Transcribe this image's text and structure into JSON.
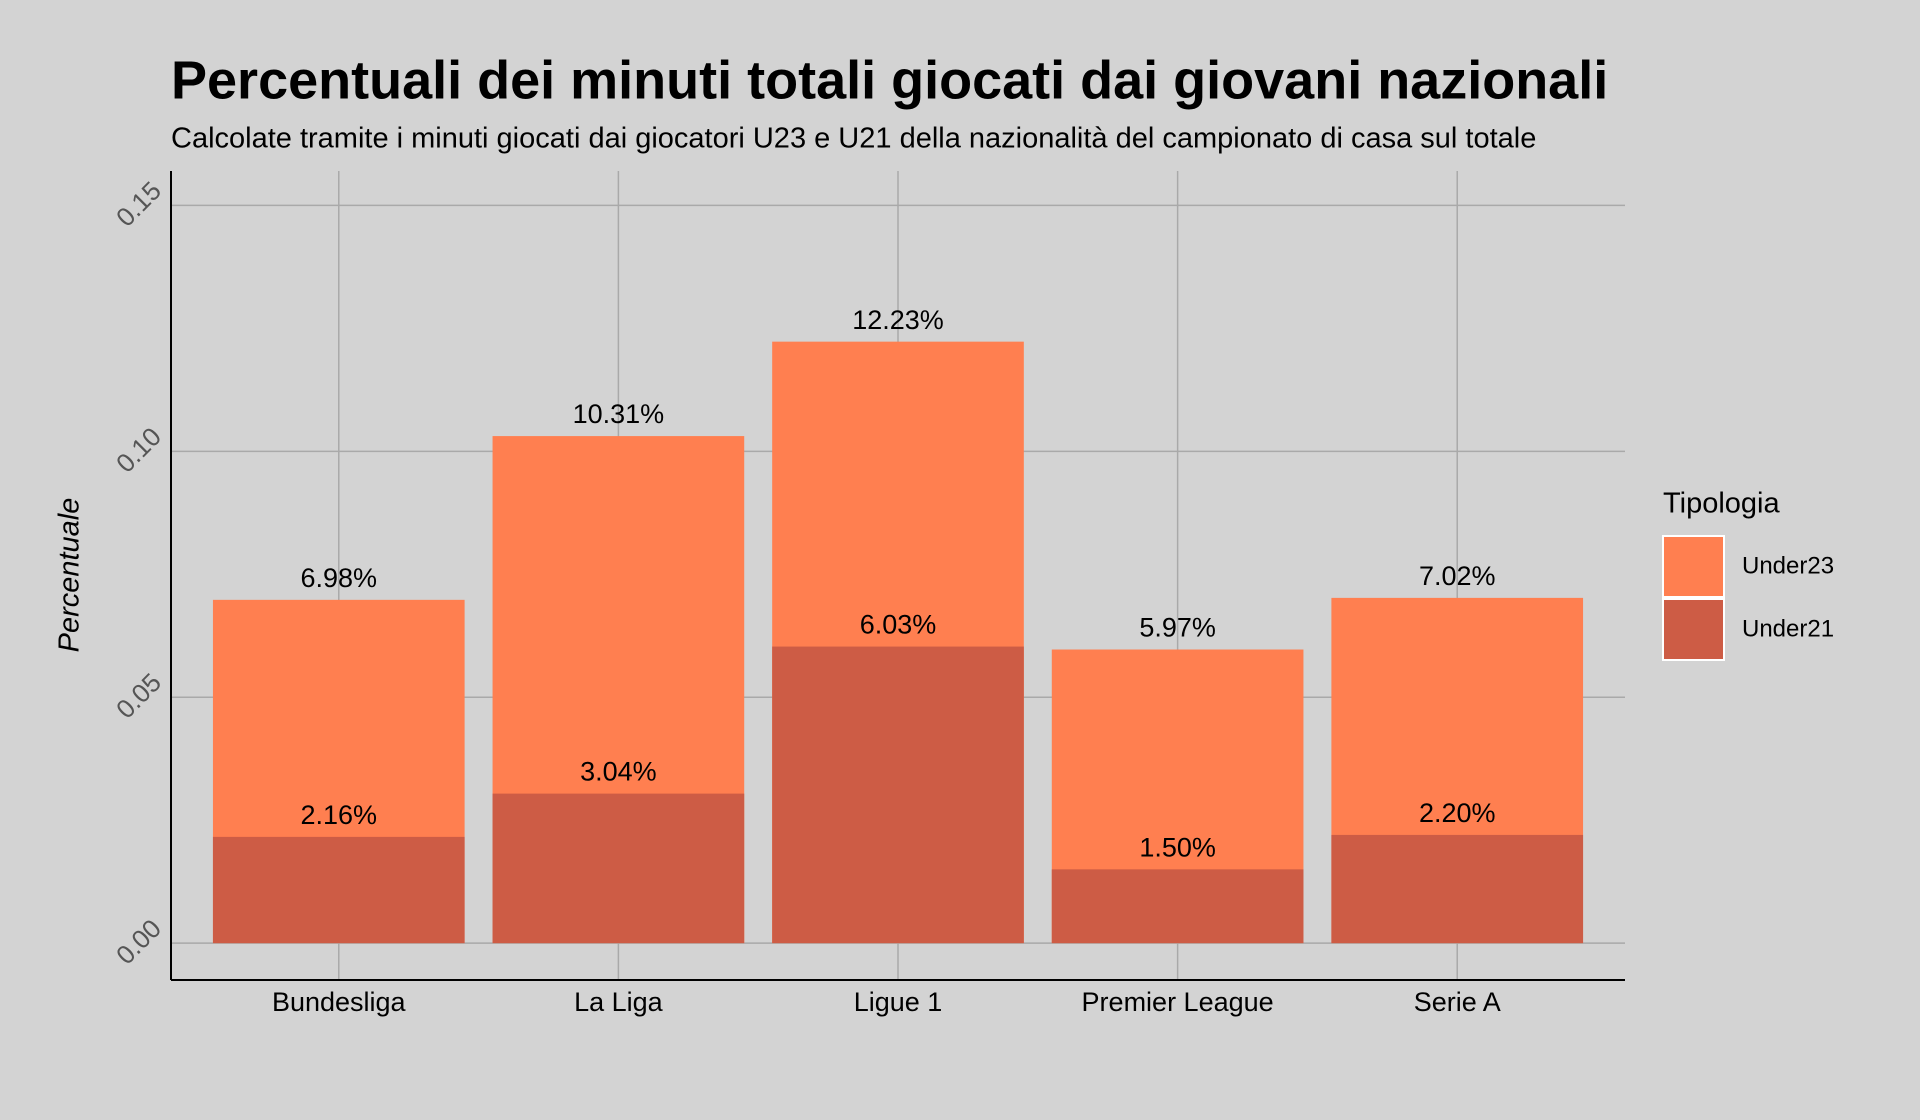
{
  "chart_data": {
    "type": "bar",
    "bar_mode": "overlay",
    "title": "Percentuali dei minuti totali giocati dai giovani nazionali",
    "subtitle": "Calcolate tramite i minuti giocati dai giocatori U23 e U21 della nazionalità del campionato di casa sul totale",
    "y_label": "Percentuale",
    "legend_title": "Tipologia",
    "legend_position": "right",
    "grid": true,
    "categories": [
      "Bundesliga",
      "La Liga",
      "Ligue 1",
      "Premier League",
      "Serie A"
    ],
    "series": [
      {
        "name": "Under23",
        "color": "#ff7f50",
        "values": [
          0.0698,
          0.1031,
          0.1223,
          0.0597,
          0.0702
        ],
        "value_labels": [
          "6.98%",
          "10.31%",
          "12.23%",
          "5.97%",
          "7.02%"
        ]
      },
      {
        "name": "Under21",
        "color": "#cd5c45",
        "values": [
          0.0216,
          0.0304,
          0.0603,
          0.015,
          0.022
        ],
        "value_labels": [
          "2.16%",
          "3.04%",
          "6.03%",
          "1.50%",
          "2.20%"
        ]
      }
    ],
    "ylim": [
      -0.0075,
      0.157
    ],
    "yticks": [
      {
        "value": 0,
        "label": "0.00"
      },
      {
        "value": 0.05,
        "label": "0.05"
      },
      {
        "value": 0.1,
        "label": "0.10"
      },
      {
        "value": 0.15,
        "label": "0.15"
      }
    ]
  }
}
